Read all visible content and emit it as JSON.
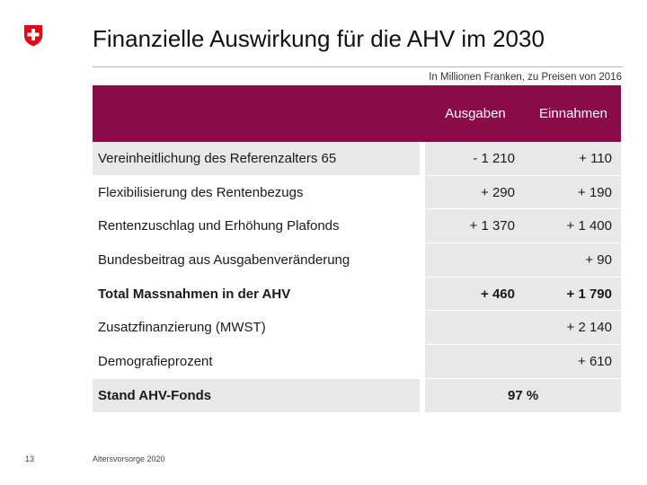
{
  "header": {
    "title": "Finanzielle Auswirkung für die AHV im 2030",
    "subtitle": "In Millionen Franken, zu Preisen von 2016",
    "logo_icon": "swiss-cross-icon",
    "brand_color": "#e30613",
    "table_header_color": "#8b0a4a"
  },
  "table": {
    "columns": [
      "Ausgaben",
      "Einnahmen"
    ],
    "rows": [
      {
        "label": "Vereinheitlichung des Referenzalters 65",
        "ausgaben": "- 1 210",
        "einnahmen": "+ 110"
      },
      {
        "label": "Flexibilisierung des Rentenbezugs",
        "ausgaben": "+ 290",
        "einnahmen": "+ 190"
      },
      {
        "label": "Rentenzuschlag und Erhöhung Plafonds",
        "ausgaben": "+ 1 370",
        "einnahmen": "+ 1 400"
      },
      {
        "label": "Bundesbeitrag aus Ausgabenveränderung",
        "ausgaben": "",
        "einnahmen": "+ 90"
      },
      {
        "label": "Total Massnahmen in der AHV",
        "ausgaben": "+ 460",
        "einnahmen": "+ 1 790"
      },
      {
        "label": "Zusatzfinanzierung (MWST)",
        "ausgaben": "",
        "einnahmen": "+ 2 140"
      },
      {
        "label": "Demografieprozent",
        "ausgaben": "",
        "einnahmen": "+ 610"
      },
      {
        "label": "Stand AHV-Fonds",
        "ausgaben": "97 %",
        "einnahmen": ""
      }
    ]
  },
  "footer": {
    "page_number": "13",
    "text": "Altersvorsorge 2020"
  }
}
